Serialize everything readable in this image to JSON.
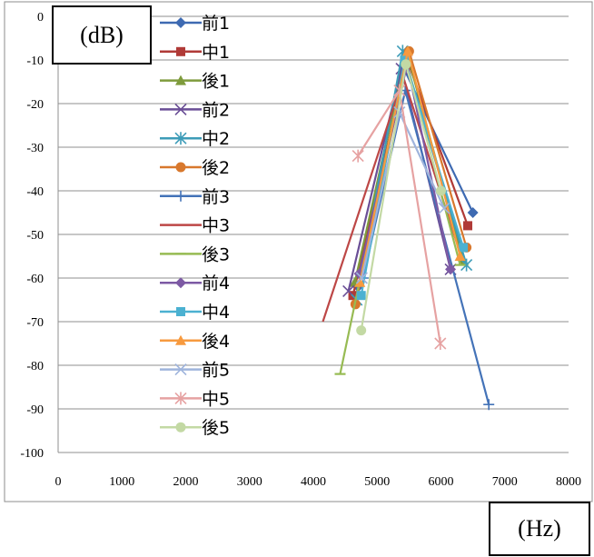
{
  "chart_data": {
    "type": "line",
    "title": "",
    "xlabel": "(Hz)",
    "ylabel": "(dB)",
    "xlim": [
      0,
      8000
    ],
    "ylim": [
      -100,
      0
    ],
    "xticks": [
      0,
      1000,
      2000,
      3000,
      4000,
      5000,
      6000,
      7000,
      8000
    ],
    "yticks": [
      0,
      -10,
      -20,
      -30,
      -40,
      -50,
      -60,
      -70,
      -80,
      -90,
      -100
    ],
    "grid": "horizontal",
    "legend_position": "left",
    "series": [
      {
        "name": "前1",
        "color": "#3e6ab2",
        "marker": "diamond",
        "x": [
          4700,
          5420,
          6500
        ],
        "y": [
          -62,
          -12,
          -45
        ]
      },
      {
        "name": "中1",
        "color": "#b03a37",
        "marker": "square",
        "x": [
          4620,
          5470,
          6420
        ],
        "y": [
          -64,
          -10,
          -48
        ]
      },
      {
        "name": "後1",
        "color": "#7e9b3c",
        "marker": "triangle",
        "x": [
          4650,
          5460,
          6350
        ],
        "y": [
          -61,
          -8,
          -56
        ]
      },
      {
        "name": "前2",
        "color": "#6a4e96",
        "marker": "x",
        "x": [
          4550,
          5380,
          6150
        ],
        "y": [
          -63,
          -12,
          -58
        ]
      },
      {
        "name": "中2",
        "color": "#3d9cb8",
        "marker": "asterisk",
        "x": [
          4680,
          5400,
          6400
        ],
        "y": [
          -65,
          -8,
          -57
        ]
      },
      {
        "name": "後2",
        "color": "#d8782d",
        "marker": "circle",
        "x": [
          4660,
          5500,
          6400
        ],
        "y": [
          -66,
          -8,
          -53
        ]
      },
      {
        "name": "前3",
        "color": "#4473b8",
        "marker": "plus",
        "x": [
          4780,
          5440,
          6750
        ],
        "y": [
          -60,
          -17,
          -89
        ]
      },
      {
        "name": "中3",
        "color": "#bd4746",
        "marker": "none",
        "x": [
          4150,
          5410,
          6250
        ],
        "y": [
          -70,
          -14,
          -52
        ]
      },
      {
        "name": "後3",
        "color": "#97bb53",
        "marker": "dash",
        "x": [
          4420,
          5450,
          6300
        ],
        "y": [
          -82,
          -10,
          -57
        ]
      },
      {
        "name": "前4",
        "color": "#7d5aa4",
        "marker": "diamond",
        "x": [
          4720,
          5470,
          6150
        ],
        "y": [
          -59,
          -11,
          -58
        ]
      },
      {
        "name": "中4",
        "color": "#4bb1d1",
        "marker": "square",
        "x": [
          4750,
          5430,
          6350
        ],
        "y": [
          -64,
          -10,
          -53
        ]
      },
      {
        "name": "後4",
        "color": "#f79a3f",
        "marker": "triangle",
        "x": [
          4730,
          5480,
          6300
        ],
        "y": [
          -61,
          -8,
          -55
        ]
      },
      {
        "name": "前5",
        "color": "#9fb4dc",
        "marker": "x",
        "x": [
          4760,
          5350,
          6050
        ],
        "y": [
          -60,
          -22,
          -44
        ]
      },
      {
        "name": "中5",
        "color": "#e6a2a2",
        "marker": "asterisk",
        "x": [
          4700,
          5350,
          5990
        ],
        "y": [
          -32,
          -17,
          -75
        ]
      },
      {
        "name": "後5",
        "color": "#c3d9a4",
        "marker": "circle",
        "x": [
          4750,
          5450,
          6000
        ],
        "y": [
          -72,
          -11,
          -40
        ]
      }
    ]
  }
}
